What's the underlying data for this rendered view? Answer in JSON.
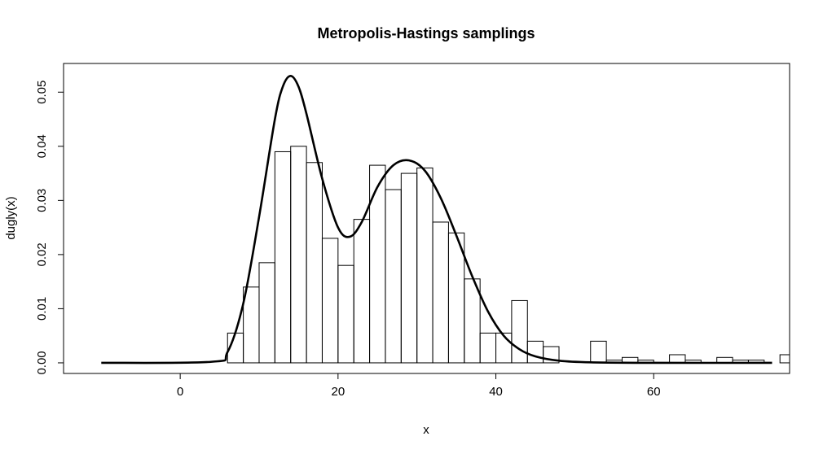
{
  "chart_data": {
    "type": "bar",
    "title": "Metropolis-Hastings samplings",
    "xlabel": "x",
    "ylabel": "dugly(x)",
    "xlim": [
      -14.78,
      77.22
    ],
    "ylim": [
      -0.00196,
      0.0553
    ],
    "x_ticks": [
      0,
      20,
      40,
      60
    ],
    "y_ticks": [
      0.0,
      0.01,
      0.02,
      0.03,
      0.04,
      0.05
    ],
    "x_tick_labels": [
      "0",
      "20",
      "40",
      "60"
    ],
    "y_tick_labels": [
      "0.00",
      "0.01",
      "0.02",
      "0.03",
      "0.04",
      "0.05"
    ],
    "grid": false,
    "series": [
      {
        "type": "histogram",
        "bin_width": 2,
        "bins_left": [
          6,
          8,
          10,
          12,
          14,
          16,
          18,
          20,
          22,
          24,
          26,
          28,
          30,
          32,
          34,
          36,
          38,
          40,
          42,
          44,
          46,
          48,
          50,
          52,
          54,
          56,
          58,
          60,
          62,
          64,
          66,
          68,
          70,
          72,
          74,
          76
        ],
        "densities": [
          0.0055,
          0.014,
          0.0185,
          0.039,
          0.04,
          0.037,
          0.023,
          0.018,
          0.0265,
          0.0365,
          0.032,
          0.035,
          0.036,
          0.026,
          0.024,
          0.0155,
          0.0055,
          0.0055,
          0.0115,
          0.004,
          0.003,
          0.0,
          0.0,
          0.004,
          0.0005,
          0.001,
          0.0005,
          0.0,
          0.0015,
          0.0005,
          0.0,
          0.001,
          0.0005,
          0.0005,
          0.0,
          0.0015
        ]
      },
      {
        "type": "line",
        "x": [
          -10,
          4,
          6,
          8,
          10,
          12,
          13,
          14,
          15,
          16,
          18,
          20,
          21.5,
          23,
          25,
          27,
          29,
          31,
          33,
          35,
          37,
          39,
          41,
          43,
          45,
          48,
          52,
          60,
          75
        ],
        "y": [
          0,
          0.0002,
          0.002,
          0.011,
          0.027,
          0.045,
          0.051,
          0.053,
          0.051,
          0.046,
          0.034,
          0.025,
          0.0233,
          0.026,
          0.0325,
          0.0365,
          0.0374,
          0.0355,
          0.0305,
          0.0235,
          0.016,
          0.0095,
          0.005,
          0.0025,
          0.0012,
          0.0004,
          0.0001,
          0,
          0
        ]
      }
    ]
  }
}
